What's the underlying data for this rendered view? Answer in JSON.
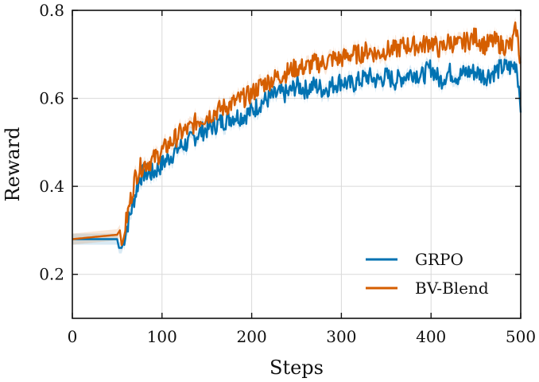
{
  "chart_data": {
    "type": "line",
    "title": "",
    "xlabel": "Steps",
    "ylabel": "Reward",
    "xlim": [
      0,
      500
    ],
    "ylim": [
      0.1,
      0.8
    ],
    "xticks": [
      0,
      100,
      200,
      300,
      400,
      500
    ],
    "yticks": [
      0.2,
      0.4,
      0.6,
      0.8
    ],
    "xtick_labels": [
      "0",
      "100",
      "200",
      "300",
      "400",
      "500"
    ],
    "ytick_labels": [
      "0.2",
      "0.4",
      "0.6",
      "0.8"
    ],
    "grid": true,
    "legend_position": "lower-right",
    "series": [
      {
        "name": "GRPO",
        "color": "#0072B2",
        "x": [
          0,
          25,
          50,
          52,
          55,
          60,
          65,
          70,
          75,
          80,
          90,
          100,
          110,
          120,
          130,
          140,
          150,
          160,
          170,
          180,
          190,
          200,
          210,
          220,
          230,
          240,
          250,
          260,
          270,
          280,
          290,
          300,
          310,
          320,
          330,
          340,
          350,
          360,
          370,
          380,
          390,
          400,
          410,
          420,
          430,
          440,
          450,
          460,
          470,
          480,
          490,
          495,
          500
        ],
        "y": [
          0.28,
          0.28,
          0.28,
          0.26,
          0.26,
          0.3,
          0.34,
          0.38,
          0.42,
          0.43,
          0.43,
          0.45,
          0.47,
          0.49,
          0.5,
          0.52,
          0.53,
          0.54,
          0.55,
          0.56,
          0.56,
          0.57,
          0.59,
          0.6,
          0.61,
          0.61,
          0.63,
          0.62,
          0.63,
          0.62,
          0.63,
          0.64,
          0.63,
          0.64,
          0.65,
          0.64,
          0.65,
          0.64,
          0.65,
          0.66,
          0.65,
          0.67,
          0.64,
          0.66,
          0.65,
          0.66,
          0.66,
          0.65,
          0.66,
          0.67,
          0.67,
          0.68,
          0.59
        ]
      },
      {
        "name": "BV-Blend",
        "color": "#D55E00",
        "x": [
          0,
          25,
          50,
          53,
          56,
          58,
          62,
          66,
          70,
          75,
          80,
          90,
          100,
          110,
          120,
          130,
          140,
          150,
          160,
          170,
          180,
          190,
          200,
          210,
          220,
          230,
          240,
          250,
          260,
          270,
          280,
          290,
          300,
          310,
          320,
          330,
          340,
          350,
          360,
          370,
          380,
          390,
          400,
          410,
          420,
          430,
          440,
          450,
          460,
          470,
          480,
          490,
          495,
          500
        ],
        "y": [
          0.28,
          0.285,
          0.29,
          0.3,
          0.25,
          0.3,
          0.34,
          0.38,
          0.42,
          0.44,
          0.45,
          0.46,
          0.48,
          0.5,
          0.52,
          0.53,
          0.55,
          0.56,
          0.57,
          0.58,
          0.59,
          0.6,
          0.61,
          0.63,
          0.64,
          0.65,
          0.66,
          0.67,
          0.67,
          0.68,
          0.68,
          0.69,
          0.69,
          0.7,
          0.7,
          0.71,
          0.7,
          0.71,
          0.71,
          0.72,
          0.72,
          0.72,
          0.73,
          0.71,
          0.73,
          0.72,
          0.73,
          0.74,
          0.72,
          0.73,
          0.72,
          0.72,
          0.76,
          0.68
        ]
      }
    ]
  }
}
